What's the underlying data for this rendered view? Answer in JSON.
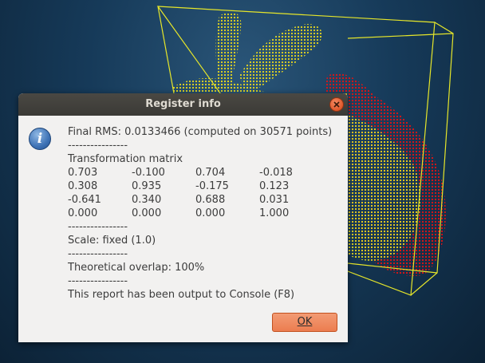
{
  "dialog": {
    "title": "Register info",
    "icon": "info-icon",
    "report": {
      "rms_line": "Final RMS: 0.0133466 (computed on 30571 points)",
      "separator": "----------------",
      "matrix_heading": "Transformation matrix",
      "matrix_rows": [
        [
          "0.703",
          "-0.100",
          "0.704",
          "-0.018"
        ],
        [
          "0.308",
          "0.935",
          "-0.175",
          "0.123"
        ],
        [
          "-0.641",
          "0.340",
          "0.688",
          "0.031"
        ],
        [
          "0.000",
          "0.000",
          "0.000",
          "1.000"
        ]
      ],
      "scale_line": "Scale: fixed (1.0)",
      "overlap_line": "Theoretical overlap: 100%",
      "console_line": "This report has been output to Console (F8)"
    },
    "ok_label": "OK"
  },
  "colors": {
    "background": "#163a59",
    "bbox": "#e6e62a",
    "cloud_yellow": "#e0d020",
    "cloud_red": "#e01010",
    "accent_orange": "#ec7d50",
    "titlebar": "#3b3a36"
  }
}
